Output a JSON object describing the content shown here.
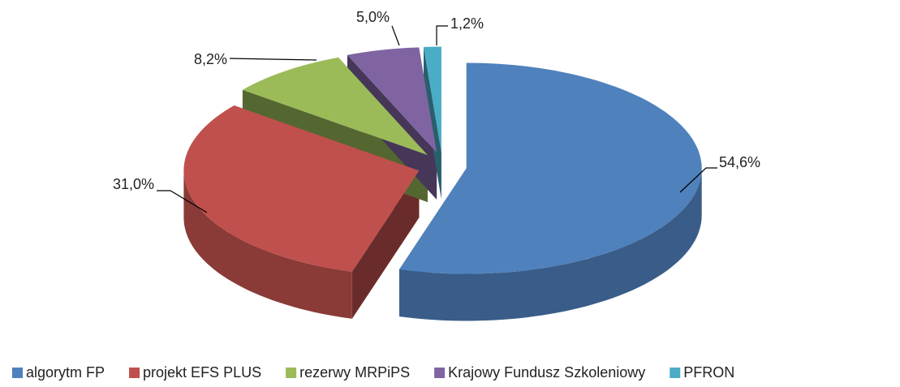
{
  "chart_data": {
    "type": "pie",
    "categories": [
      "algorytm FP",
      "projekt EFS PLUS",
      "rezerwy MRPiPS",
      "Krajowy Fundusz Szkoleniowy",
      "PFRON"
    ],
    "values": [
      54.6,
      31.0,
      8.2,
      5.0,
      1.2
    ],
    "value_labels": [
      "54,6%",
      "31,0%",
      "8,2%",
      "5,0%",
      "1,2%"
    ],
    "colors": [
      "#4f81bd",
      "#c0504d",
      "#9bbb59",
      "#8064a2",
      "#4bacc6"
    ],
    "legend": "bottom"
  }
}
